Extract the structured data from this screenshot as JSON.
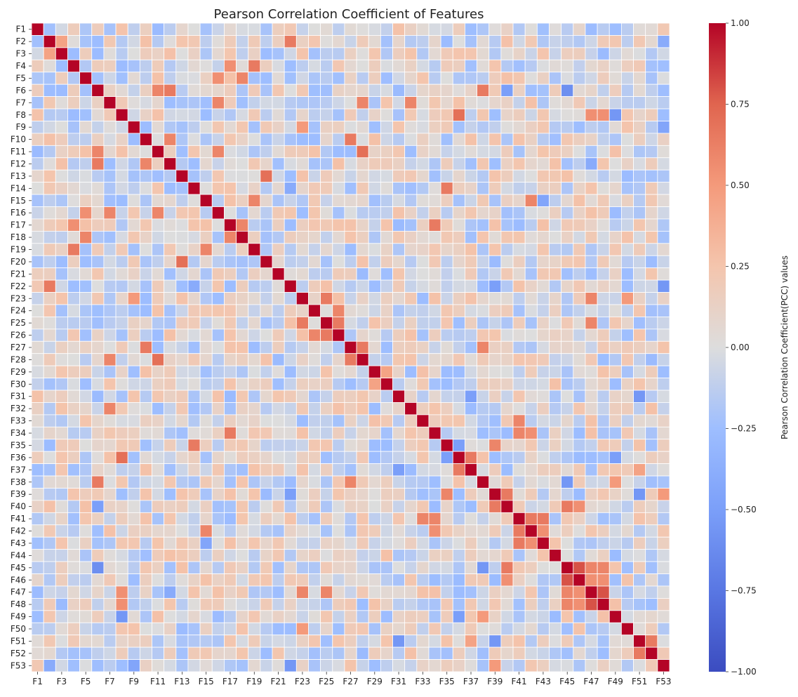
{
  "chart_data": {
    "type": "heatmap",
    "title": "Pearson Correlation Coefficient of Features",
    "xlabel": "",
    "ylabel": "",
    "colorbar_label": "Pearson Correlation Coefficient(PCC) values",
    "colorbar_ticks": [
      "1.00",
      "0.75",
      "0.50",
      "0.25",
      "0.00",
      "−0.25",
      "−0.50",
      "−0.75",
      "−1.00"
    ],
    "colorbar_tick_values": [
      1.0,
      0.75,
      0.5,
      0.25,
      0.0,
      -0.25,
      -0.5,
      -0.75,
      -1.0
    ],
    "vmin": -1.0,
    "vmax": 1.0,
    "colormap": "coolwarm",
    "colors": {
      "low": "#3b4cc0",
      "mid": "#dddddd",
      "high": "#b40426",
      "grid": "#ffffff"
    },
    "grid_lines": "white",
    "n_features": 53,
    "row_labels": [
      "F1",
      "F2",
      "F3",
      "F4",
      "F5",
      "F6",
      "F7",
      "F8",
      "F9",
      "F10",
      "F11",
      "F12",
      "F13",
      "F14",
      "F15",
      "F16",
      "F17",
      "F18",
      "F19",
      "F20",
      "F21",
      "F22",
      "F23",
      "F24",
      "F25",
      "F26",
      "F27",
      "F28",
      "F29",
      "F30",
      "F31",
      "F32",
      "F33",
      "F34",
      "F35",
      "F36",
      "F37",
      "F38",
      "F39",
      "F40",
      "F41",
      "F42",
      "F43",
      "F44",
      "F45",
      "F46",
      "F47",
      "F48",
      "F49",
      "F50",
      "F51",
      "F52",
      "F53"
    ],
    "x_tick_labels": [
      "F1",
      "F3",
      "F5",
      "F7",
      "F9",
      "F11",
      "F13",
      "F15",
      "F17",
      "F19",
      "F21",
      "F23",
      "F25",
      "F27",
      "F29",
      "F31",
      "F33",
      "F35",
      "F37",
      "F39",
      "F41",
      "F43",
      "F45",
      "F47",
      "F49",
      "F51",
      "F53"
    ],
    "diagonal_value": 1.0,
    "notable_correlations": [
      {
        "a": "F2",
        "b": "F22",
        "value": 0.65
      },
      {
        "a": "F2",
        "b": "F3",
        "value": 0.45
      },
      {
        "a": "F2",
        "b": "F53",
        "value": -0.4
      },
      {
        "a": "F4",
        "b": "F19",
        "value": 0.65
      },
      {
        "a": "F4",
        "b": "F17",
        "value": 0.55
      },
      {
        "a": "F5",
        "b": "F16",
        "value": 0.55
      },
      {
        "a": "F5",
        "b": "F18",
        "value": 0.6
      },
      {
        "a": "F6",
        "b": "F12",
        "value": 0.65
      },
      {
        "a": "F6",
        "b": "F11",
        "value": 0.6
      },
      {
        "a": "F6",
        "b": "F38",
        "value": 0.65
      },
      {
        "a": "F6",
        "b": "F45",
        "value": -0.6
      },
      {
        "a": "F6",
        "b": "F40",
        "value": -0.5
      },
      {
        "a": "F7",
        "b": "F16",
        "value": 0.6
      },
      {
        "a": "F7",
        "b": "F28",
        "value": 0.6
      },
      {
        "a": "F7",
        "b": "F32",
        "value": 0.6
      },
      {
        "a": "F8",
        "b": "F36",
        "value": 0.7
      },
      {
        "a": "F8",
        "b": "F47",
        "value": 0.55
      },
      {
        "a": "F8",
        "b": "F48",
        "value": 0.55
      },
      {
        "a": "F8",
        "b": "F49",
        "value": -0.55
      },
      {
        "a": "F9",
        "b": "F23",
        "value": 0.5
      },
      {
        "a": "F9",
        "b": "F53",
        "value": -0.45
      },
      {
        "a": "F10",
        "b": "F12",
        "value": 0.6
      },
      {
        "a": "F10",
        "b": "F27",
        "value": 0.65
      },
      {
        "a": "F11",
        "b": "F16",
        "value": 0.6
      },
      {
        "a": "F11",
        "b": "F28",
        "value": 0.7
      },
      {
        "a": "F12",
        "b": "F47",
        "value": -0.4
      },
      {
        "a": "F13",
        "b": "F20",
        "value": 0.7
      },
      {
        "a": "F14",
        "b": "F35",
        "value": 0.65
      },
      {
        "a": "F14",
        "b": "F22",
        "value": -0.4
      },
      {
        "a": "F15",
        "b": "F19",
        "value": 0.6
      },
      {
        "a": "F15",
        "b": "F42",
        "value": 0.6
      },
      {
        "a": "F15",
        "b": "F43",
        "value": -0.45
      },
      {
        "a": "F17",
        "b": "F18",
        "value": 0.6
      },
      {
        "a": "F17",
        "b": "F34",
        "value": 0.65
      },
      {
        "a": "F22",
        "b": "F53",
        "value": -0.55
      },
      {
        "a": "F22",
        "b": "F39",
        "value": -0.5
      },
      {
        "a": "F23",
        "b": "F25",
        "value": 0.65
      },
      {
        "a": "F23",
        "b": "F47",
        "value": 0.6
      },
      {
        "a": "F24",
        "b": "F26",
        "value": 0.6
      },
      {
        "a": "F25",
        "b": "F26",
        "value": 0.65
      },
      {
        "a": "F25",
        "b": "F47",
        "value": 0.6
      },
      {
        "a": "F27",
        "b": "F28",
        "value": 0.65
      },
      {
        "a": "F27",
        "b": "F38",
        "value": 0.6
      },
      {
        "a": "F29",
        "b": "F30",
        "value": 0.45
      },
      {
        "a": "F31",
        "b": "F51",
        "value": -0.55
      },
      {
        "a": "F31",
        "b": "F37",
        "value": -0.5
      },
      {
        "a": "F33",
        "b": "F41",
        "value": 0.6
      },
      {
        "a": "F34",
        "b": "F41",
        "value": 0.6
      },
      {
        "a": "F34",
        "b": "F42",
        "value": 0.55
      },
      {
        "a": "F35",
        "b": "F36",
        "value": -0.5
      },
      {
        "a": "F35",
        "b": "F39",
        "value": 0.6
      },
      {
        "a": "F36",
        "b": "F37",
        "value": 0.65
      },
      {
        "a": "F36",
        "b": "F49",
        "value": -0.5
      },
      {
        "a": "F37",
        "b": "F51",
        "value": 0.45
      },
      {
        "a": "F38",
        "b": "F45",
        "value": -0.55
      },
      {
        "a": "F38",
        "b": "F49",
        "value": 0.5
      },
      {
        "a": "F39",
        "b": "F40",
        "value": 0.65
      },
      {
        "a": "F39",
        "b": "F51",
        "value": -0.55
      },
      {
        "a": "F39",
        "b": "F53",
        "value": 0.5
      },
      {
        "a": "F40",
        "b": "F45",
        "value": 0.65
      },
      {
        "a": "F40",
        "b": "F46",
        "value": 0.55
      },
      {
        "a": "F41",
        "b": "F42",
        "value": 0.65
      },
      {
        "a": "F41",
        "b": "F43",
        "value": 0.65
      },
      {
        "a": "F42",
        "b": "F43",
        "value": 0.55
      },
      {
        "a": "F45",
        "b": "F46",
        "value": 0.8
      },
      {
        "a": "F45",
        "b": "F47",
        "value": 0.6
      },
      {
        "a": "F45",
        "b": "F48",
        "value": 0.6
      },
      {
        "a": "F46",
        "b": "F47",
        "value": 0.55
      },
      {
        "a": "F46",
        "b": "F48",
        "value": 0.55
      },
      {
        "a": "F47",
        "b": "F48",
        "value": 0.8
      },
      {
        "a": "F51",
        "b": "F52",
        "value": 0.65
      },
      {
        "a": "F50",
        "b": "F23",
        "value": 0.5
      }
    ]
  }
}
